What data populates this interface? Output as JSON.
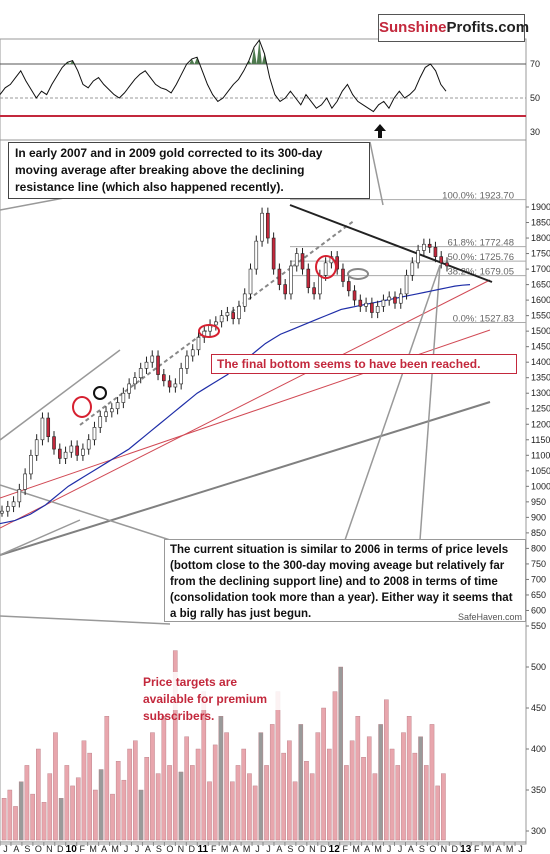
{
  "brand": {
    "part1": "Sunshine",
    "part2": "Profits.com"
  },
  "credit": "SafeHaven.com",
  "annotations": {
    "top_note": "In early 2007 and in 2009 gold corrected to its 300-day moving average after breaking above the declining resistance line (which also happened recently).",
    "bottom_reached": "The final bottom seems to have been reached.",
    "current_situation": "The current situation is similar to 2006 in terms of price levels (bottom close to the 300-day moving aveage but relatively far from the declining support line) and to 2008 in terms of time (consolidation took more than a year). Either way it seems that a big rally has just begun.",
    "premium": "Price targets are available for premium subscribers."
  },
  "colors": {
    "accent": "#c3283c",
    "overbought_fill": "#4f7a4f",
    "ma_line": "#1f2ea8",
    "volume_bar": "#e8a6ad",
    "volume_bar_dark": "#8c8c8c"
  },
  "chart_data": [
    {
      "type": "line",
      "panel": "RSI",
      "y_ticks": [
        70,
        50,
        30
      ],
      "reference_lines": [
        70,
        50,
        40
      ],
      "series": [
        {
          "values": [
            52,
            56,
            58,
            62,
            66,
            60,
            55,
            50,
            54,
            52,
            58,
            63,
            68,
            71,
            72,
            66,
            58,
            56,
            60,
            62,
            58,
            55,
            52,
            50,
            53,
            57,
            61,
            64,
            66,
            62,
            58,
            56,
            55,
            53,
            58,
            64,
            70,
            73,
            74,
            66,
            58,
            52,
            48,
            50,
            54,
            58,
            61,
            66,
            72,
            80,
            84,
            76,
            62,
            52,
            48,
            50,
            54,
            50,
            46,
            52,
            48,
            44,
            46,
            50,
            44,
            48,
            54,
            58,
            52,
            48,
            46,
            44,
            42,
            46,
            48,
            44,
            50,
            54,
            50,
            52,
            55,
            62,
            68,
            70,
            66,
            58,
            54
          ]
        }
      ]
    },
    {
      "type": "line",
      "panel": "price",
      "ylim": [
        300,
        1950
      ],
      "y_ticks": [
        1900,
        1850,
        1800,
        1750,
        1700,
        1650,
        1600,
        1550,
        1500,
        1450,
        1400,
        1350,
        1300,
        1250,
        1200,
        1150,
        1100,
        1050,
        1000,
        950,
        900,
        850,
        800,
        750,
        700,
        650,
        600,
        550,
        500,
        450,
        400,
        350,
        300
      ],
      "fibonacci": [
        {
          "label": "100.0%: 1923.70",
          "value": 1923.7
        },
        {
          "label": "61.8%: 1772.48",
          "value": 1772.48
        },
        {
          "label": "50.0%: 1725.76",
          "value": 1725.76
        },
        {
          "label": "38.2%: 1679.05",
          "value": 1679.05
        },
        {
          "label": "0.0%: 1527.83",
          "value": 1527.83
        }
      ],
      "series": [
        {
          "values": [
            920,
            935,
            950,
            990,
            1040,
            1100,
            1150,
            1220,
            1160,
            1120,
            1090,
            1110,
            1130,
            1100,
            1120,
            1150,
            1190,
            1225,
            1240,
            1250,
            1270,
            1300,
            1330,
            1350,
            1380,
            1400,
            1420,
            1360,
            1340,
            1320,
            1330,
            1380,
            1420,
            1440,
            1480,
            1500,
            1520,
            1530,
            1550,
            1560,
            1540,
            1580,
            1620,
            1700,
            1790,
            1880,
            1800,
            1700,
            1650,
            1620,
            1710,
            1750,
            1700,
            1640,
            1620,
            1680,
            1720,
            1740,
            1700,
            1660,
            1630,
            1600,
            1580,
            1590,
            1560,
            1580,
            1600,
            1610,
            1590,
            1620,
            1680,
            1720,
            1760,
            1780,
            1770,
            1740,
            1720,
            1710
          ]
        },
        {
          "name": "300-day moving average",
          "values": [
            880,
            885,
            890,
            900,
            910,
            925,
            940,
            960,
            980,
            1000,
            1015,
            1030,
            1045,
            1060,
            1075,
            1090,
            1105,
            1120,
            1140,
            1160,
            1180,
            1200,
            1220,
            1240,
            1260,
            1280,
            1300,
            1315,
            1330,
            1345,
            1360,
            1380,
            1400,
            1420,
            1440,
            1460,
            1475,
            1490,
            1500,
            1510,
            1520,
            1530,
            1540,
            1550,
            1560,
            1570,
            1575,
            1580,
            1585,
            1590,
            1595,
            1600,
            1605,
            1610,
            1615,
            1620,
            1625,
            1630,
            1635,
            1640,
            1645,
            1648,
            1650
          ]
        }
      ],
      "x_tick_labels": [
        "J",
        "A",
        "S",
        "O",
        "N",
        "D",
        "10",
        "F",
        "M",
        "A",
        "M",
        "J",
        "J",
        "A",
        "S",
        "O",
        "N",
        "D",
        "11",
        "F",
        "M",
        "A",
        "M",
        "J",
        "J",
        "A",
        "S",
        "O",
        "N",
        "D",
        "12",
        "F",
        "M",
        "A",
        "M",
        "J",
        "J",
        "A",
        "S",
        "O",
        "N",
        "D",
        "13",
        "F",
        "M",
        "A",
        "M",
        "J"
      ]
    },
    {
      "type": "bar",
      "panel": "volume",
      "y_ticks": [
        500,
        450,
        400,
        350,
        300
      ],
      "values": [
        340,
        350,
        330,
        360,
        380,
        345,
        400,
        335,
        370,
        420,
        340,
        380,
        355,
        365,
        410,
        395,
        350,
        375,
        440,
        345,
        385,
        362,
        400,
        410,
        350,
        390,
        420,
        370,
        440,
        380,
        520,
        372,
        415,
        380,
        400,
        470,
        360,
        405,
        440,
        420,
        360,
        380,
        400,
        370,
        355,
        420,
        380,
        430,
        470,
        395,
        410,
        360,
        430,
        385,
        370,
        420,
        450,
        400,
        470,
        500,
        380,
        410,
        440,
        390,
        415,
        370,
        430,
        460,
        400,
        380,
        420,
        440,
        395,
        415,
        380,
        430,
        355,
        370
      ]
    }
  ]
}
